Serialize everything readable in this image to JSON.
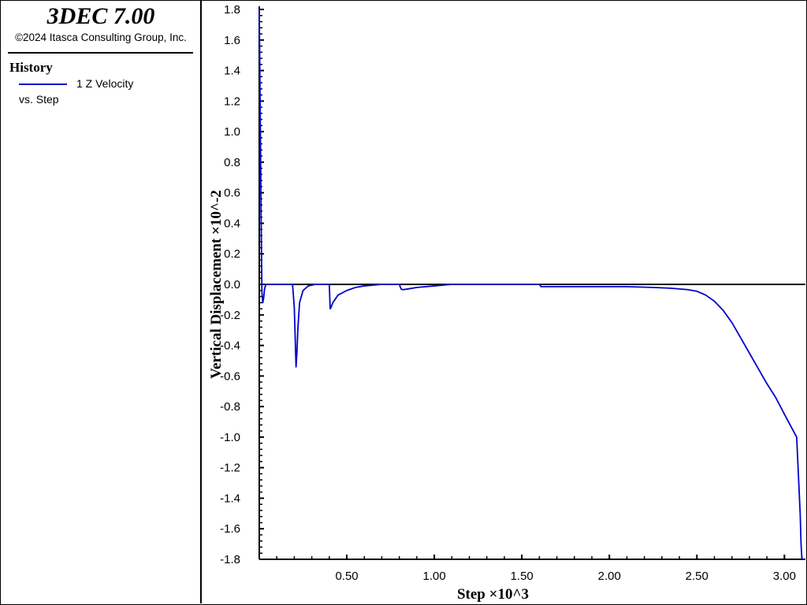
{
  "app": {
    "title": "3DEC 7.00",
    "copyright": "©2024 Itasca Consulting Group, Inc."
  },
  "legend": {
    "heading": "History",
    "series_label": "1 Z Velocity",
    "series_vs": "vs. Step",
    "series_color": "#0000cc"
  },
  "chart_data": {
    "type": "line",
    "xlabel": "Step ×10^3",
    "ylabel": "Vertical Displacement ×10^-2",
    "xlim": [
      0.0,
      3.12
    ],
    "ylim": [
      -1.8,
      1.8
    ],
    "xticks": [
      0.5,
      1.0,
      1.5,
      2.0,
      2.5,
      3.0
    ],
    "xtick_labels": [
      "0.50",
      "1.00",
      "1.50",
      "2.00",
      "2.50",
      "3.00"
    ],
    "yticks": [
      1.8,
      1.6,
      1.4,
      1.2,
      1.0,
      0.8,
      0.6,
      0.4,
      0.2,
      0.0,
      -0.2,
      -0.4,
      -0.6,
      -0.8,
      -1.0,
      -1.2,
      -1.4,
      -1.6,
      -1.8
    ],
    "ytick_labels": [
      "1.8",
      "1.6",
      "1.4",
      "1.2",
      "1.0",
      "0.8",
      "0.6",
      "0.4",
      "0.2",
      "0.0",
      "-0.2",
      "-0.4",
      "-0.6",
      "-0.8",
      "-1.0",
      "-1.2",
      "-1.4",
      "-1.6",
      "-1.8"
    ],
    "zero_line": true,
    "grid": false,
    "series": [
      {
        "name": "1 Z Velocity",
        "color": "#0000cc",
        "x": [
          0.0,
          0.005,
          0.01,
          0.015,
          0.02,
          0.025,
          0.03,
          0.035,
          0.04,
          0.05,
          0.1,
          0.15,
          0.19,
          0.2,
          0.21,
          0.215,
          0.22,
          0.23,
          0.25,
          0.28,
          0.32,
          0.38,
          0.4,
          0.405,
          0.41,
          0.42,
          0.45,
          0.5,
          0.55,
          0.6,
          0.7,
          0.8,
          0.81,
          0.82,
          0.85,
          0.9,
          1.0,
          1.1,
          1.2,
          1.4,
          1.6,
          1.61,
          1.62,
          1.7,
          1.9,
          2.1,
          2.25,
          2.35,
          2.45,
          2.5,
          2.55,
          2.6,
          2.65,
          2.7,
          2.75,
          2.8,
          2.85,
          2.9,
          2.95,
          3.0,
          3.07,
          3.08,
          3.09,
          3.095,
          3.1
        ],
        "y": [
          1.8,
          1.2,
          0.5,
          -0.05,
          -0.12,
          -0.09,
          -0.03,
          -0.01,
          0.0,
          0.0,
          0.0,
          0.0,
          0.0,
          -0.15,
          -0.54,
          -0.45,
          -0.3,
          -0.12,
          -0.04,
          -0.01,
          0.0,
          0.0,
          0.0,
          -0.16,
          -0.15,
          -0.12,
          -0.07,
          -0.04,
          -0.02,
          -0.01,
          0.0,
          0.0,
          -0.03,
          -0.035,
          -0.03,
          -0.02,
          -0.01,
          0.0,
          0.0,
          0.0,
          0.0,
          -0.015,
          -0.015,
          -0.015,
          -0.015,
          -0.015,
          -0.02,
          -0.025,
          -0.035,
          -0.045,
          -0.07,
          -0.11,
          -0.17,
          -0.25,
          -0.35,
          -0.45,
          -0.55,
          -0.65,
          -0.74,
          -0.85,
          -1.0,
          -1.25,
          -1.5,
          -1.7,
          -1.8
        ]
      }
    ]
  }
}
